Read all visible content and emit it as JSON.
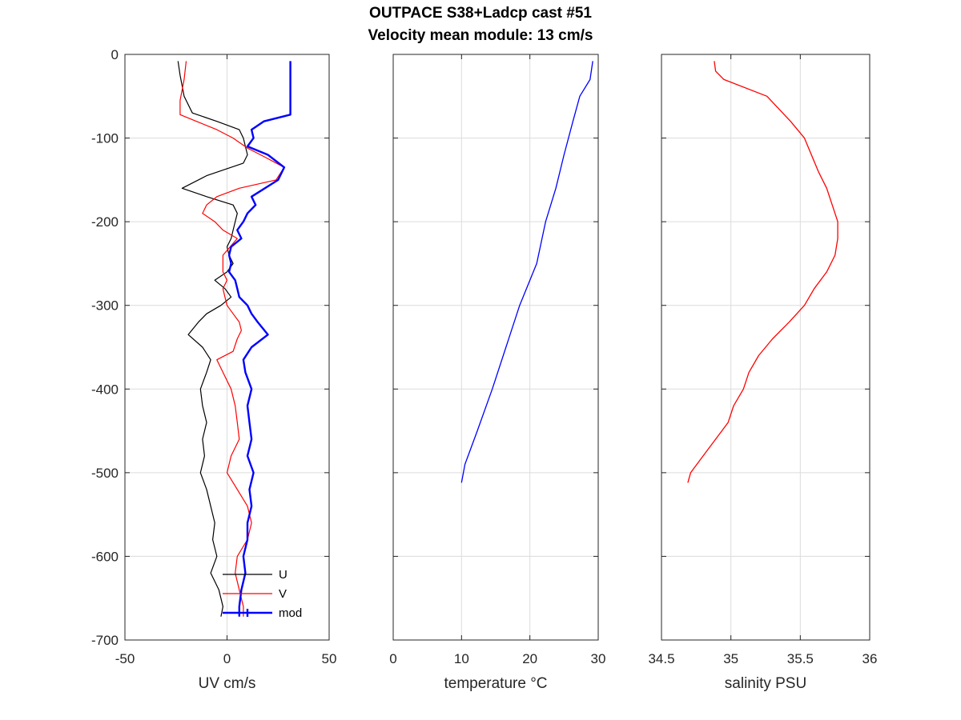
{
  "chart_data": {
    "type": "line",
    "title": "OUTPACE S38+Ladcp cast #51",
    "subtitle": "Velocity mean module:  13 cm/s",
    "y_ticks": [
      "0",
      "-100",
      "-200",
      "-300",
      "-400",
      "-500",
      "-600",
      "-700"
    ],
    "ylim": [
      -700,
      0
    ],
    "grid": true,
    "panels": [
      {
        "xlabel": "UV cm/s",
        "xlim": [
          -50,
          50
        ],
        "x_ticks": [
          "-50",
          "0",
          "50"
        ],
        "x_tick_values": [
          -50,
          0,
          50
        ],
        "legend": {
          "placement": "bottom-right",
          "entries": [
            "U",
            "V",
            "mod"
          ]
        },
        "series": [
          {
            "name": "U",
            "color": "#000000",
            "width": 1.2,
            "depth": [
              -8,
              -25,
              -50,
              -70,
              -80,
              -90,
              -100,
              -110,
              -120,
              -130,
              -145,
              -160,
              -170,
              -180,
              -190,
              -200,
              -210,
              -220,
              -230,
              -240,
              -250,
              -260,
              -270,
              -280,
              -290,
              -300,
              -310,
              -320,
              -335,
              -350,
              -365,
              -380,
              -400,
              -420,
              -440,
              -460,
              -480,
              -500,
              -520,
              -540,
              -560,
              -580,
              -600,
              -620,
              -640,
              -660,
              -672
            ],
            "values": [
              -24,
              -23,
              -21,
              -17,
              -5,
              6,
              8,
              9,
              10,
              8,
              -10,
              -22,
              -10,
              3,
              5,
              4,
              3,
              2,
              0,
              1,
              3,
              0,
              -6,
              -1,
              2,
              -3,
              -10,
              -14,
              -19,
              -12,
              -8,
              -10,
              -13,
              -12,
              -10,
              -12,
              -11,
              -13,
              -10,
              -8,
              -6,
              -7,
              -5,
              -8,
              -4,
              -2,
              -3
            ]
          },
          {
            "name": "V",
            "color": "#ff0000",
            "width": 1.2,
            "depth": [
              -8,
              -30,
              -55,
              -72,
              -80,
              -90,
              -100,
              -112,
              -122,
              -135,
              -150,
              -160,
              -170,
              -180,
              -190,
              -200,
              -210,
              -220,
              -240,
              -260,
              -270,
              -280,
              -290,
              -300,
              -310,
              -320,
              -330,
              -340,
              -355,
              -365,
              -380,
              -400,
              -420,
              -440,
              -460,
              -480,
              -500,
              -520,
              -540,
              -560,
              -580,
              -600,
              -620,
              -640,
              -660,
              -672
            ],
            "values": [
              -20,
              -21,
              -23,
              -23,
              -15,
              -5,
              3,
              10,
              18,
              28,
              24,
              6,
              -5,
              -10,
              -12,
              -6,
              -2,
              5,
              -2,
              -2,
              0,
              -2,
              -1,
              0,
              3,
              6,
              7,
              5,
              3,
              -5,
              -2,
              2,
              4,
              5,
              6,
              2,
              0,
              5,
              10,
              12,
              10,
              5,
              4,
              6,
              8,
              8
            ]
          },
          {
            "name": "mod",
            "color": "#0000ff",
            "width": 2.4,
            "depth": [
              -8,
              -20,
              -40,
              -60,
              -72,
              -80,
              -90,
              -100,
              -110,
              -120,
              -135,
              -150,
              -170,
              -180,
              -190,
              -200,
              -210,
              -220,
              -230,
              -240,
              -250,
              -260,
              -270,
              -280,
              -290,
              -300,
              -310,
              -320,
              -335,
              -350,
              -365,
              -380,
              -400,
              -420,
              -440,
              -460,
              -480,
              -500,
              -520,
              -540,
              -560,
              -580,
              -600,
              -620,
              -640,
              -660,
              -672
            ],
            "values": [
              31,
              31,
              31,
              31,
              31,
              18,
              12,
              13,
              10,
              20,
              28,
              25,
              12,
              14,
              10,
              8,
              5,
              7,
              2,
              1,
              2,
              1,
              4,
              5,
              6,
              10,
              12,
              15,
              20,
              12,
              8,
              9,
              12,
              10,
              11,
              12,
              10,
              13,
              11,
              12,
              10,
              10,
              8,
              9,
              7,
              6,
              6
            ]
          }
        ]
      },
      {
        "xlabel": "temperature °C",
        "xlim": [
          0,
          30
        ],
        "x_ticks": [
          "0",
          "10",
          "20",
          "30"
        ],
        "x_tick_values": [
          0,
          10,
          20,
          30
        ],
        "series": [
          {
            "color": "#0000ff",
            "width": 1.3,
            "depth": [
              -8,
              -30,
              -50,
              -80,
              -120,
              -160,
              -200,
              -250,
              -300,
              -350,
              -400,
              -450,
              -490,
              -512
            ],
            "values": [
              29.2,
              28.8,
              27.3,
              26.3,
              25.0,
              23.8,
              22.3,
              21.0,
              18.5,
              16.5,
              14.5,
              12.3,
              10.5,
              10.0
            ]
          }
        ]
      },
      {
        "xlabel": "salinity PSU",
        "xlim": [
          34.5,
          36
        ],
        "x_ticks": [
          "34.5",
          "35",
          "35.5",
          "36"
        ],
        "x_tick_values": [
          34.5,
          35,
          35.5,
          36
        ],
        "series": [
          {
            "color": "#ff0000",
            "width": 1.3,
            "depth": [
              -8,
              -20,
              -30,
              -50,
              -80,
              -100,
              -120,
              -140,
              -160,
              -180,
              -200,
              -220,
              -240,
              -260,
              -280,
              -300,
              -320,
              -340,
              -360,
              -380,
              -400,
              -420,
              -440,
              -460,
              -480,
              -500,
              -512
            ],
            "values": [
              34.88,
              34.89,
              34.95,
              35.26,
              35.43,
              35.53,
              35.58,
              35.63,
              35.69,
              35.73,
              35.77,
              35.77,
              35.75,
              35.69,
              35.6,
              35.53,
              35.42,
              35.3,
              35.2,
              35.13,
              35.09,
              35.02,
              34.98,
              34.89,
              34.8,
              34.71,
              34.69
            ]
          }
        ]
      }
    ]
  }
}
